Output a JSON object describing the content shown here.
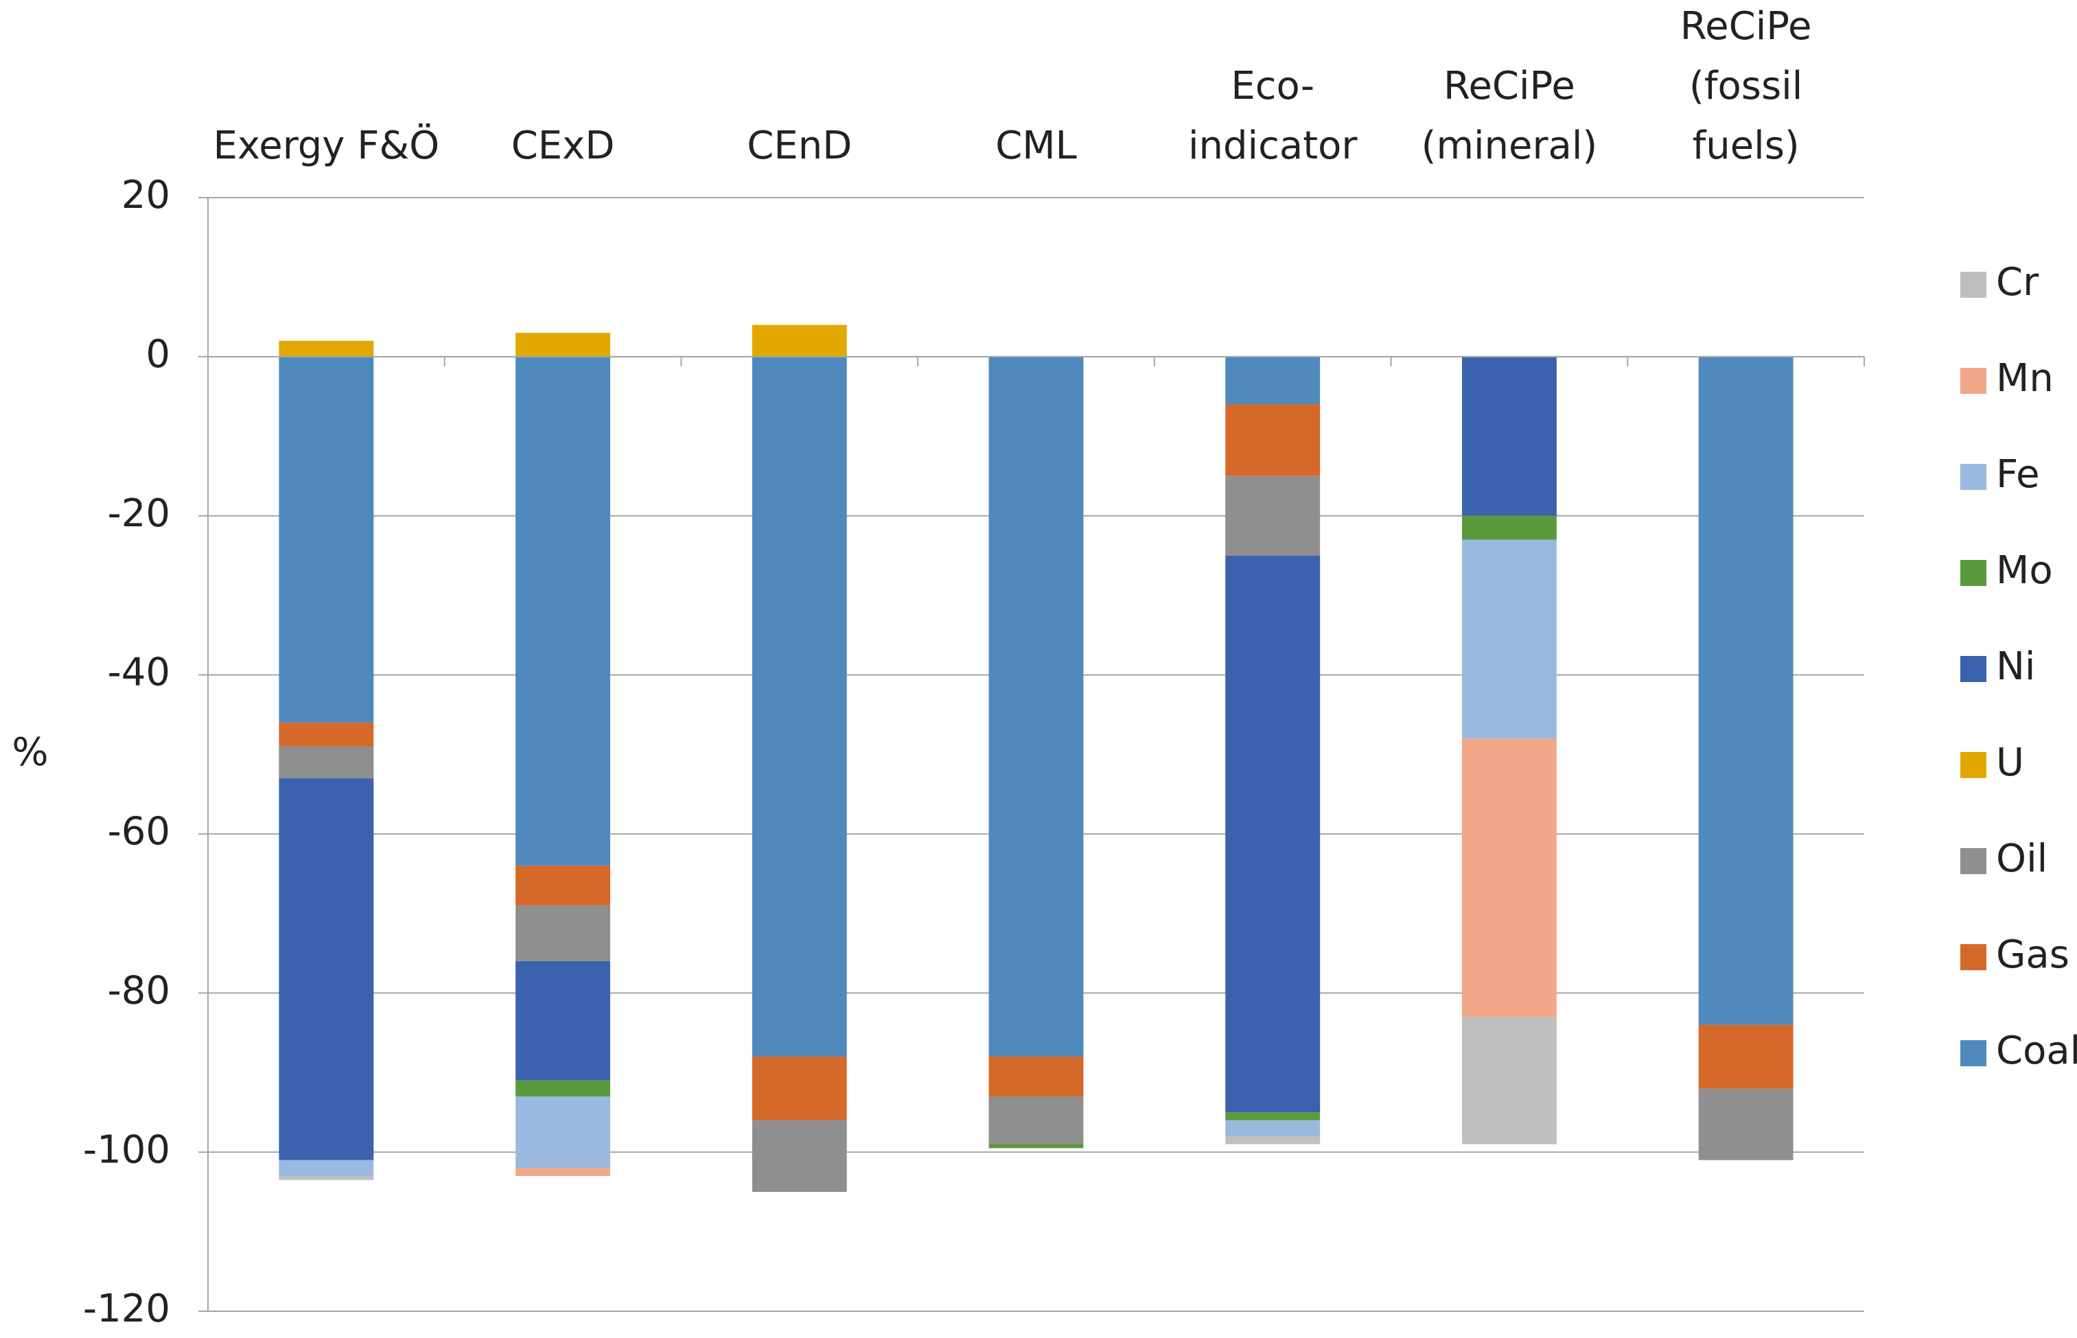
{
  "chart_data": {
    "type": "stacked-bar",
    "y_label": "%",
    "categories": [
      "Exergy F&Ö",
      "CExD",
      "CEnD",
      "CML",
      "Eco-\nindicator",
      "ReCiPe\n(mineral)",
      "ReCiPe\n(fossil\nfuels)"
    ],
    "series": [
      {
        "name": "Coal",
        "color": "#4f89bd",
        "values": [
          -46,
          -64,
          -88,
          -88,
          -6,
          0,
          -84
        ]
      },
      {
        "name": "Gas",
        "color": "#d4692a",
        "values": [
          -3,
          -5,
          -8,
          -5,
          -9,
          0,
          -8
        ]
      },
      {
        "name": "Oil",
        "color": "#8f8f8f",
        "values": [
          -4,
          -7,
          -9,
          -6,
          -10,
          0,
          -9
        ]
      },
      {
        "name": "U",
        "color": "#e0a800",
        "values": [
          2,
          3,
          4,
          0,
          0,
          0,
          0
        ]
      },
      {
        "name": "Ni",
        "color": "#3a62ad",
        "values": [
          -48,
          -15,
          0,
          0,
          -70,
          -20,
          0
        ]
      },
      {
        "name": "Mo",
        "color": "#5a9a3c",
        "values": [
          0,
          -2,
          0,
          -0.5,
          -1,
          -3,
          0
        ]
      },
      {
        "name": "Fe",
        "color": "#9ab9de",
        "values": [
          -2,
          -9,
          0,
          0,
          -2,
          -25,
          0
        ]
      },
      {
        "name": "Mn",
        "color": "#f0a889",
        "values": [
          0,
          -1,
          0,
          0,
          0,
          -35,
          0
        ]
      },
      {
        "name": "Cr",
        "color": "#bfbfbf",
        "values": [
          -0.5,
          0,
          0,
          0,
          -1,
          -16,
          0
        ]
      }
    ],
    "ylim": [
      -120,
      20
    ],
    "yticks": [
      -120,
      -100,
      -80,
      -60,
      -40,
      -20,
      0,
      20
    ],
    "grid": true
  }
}
